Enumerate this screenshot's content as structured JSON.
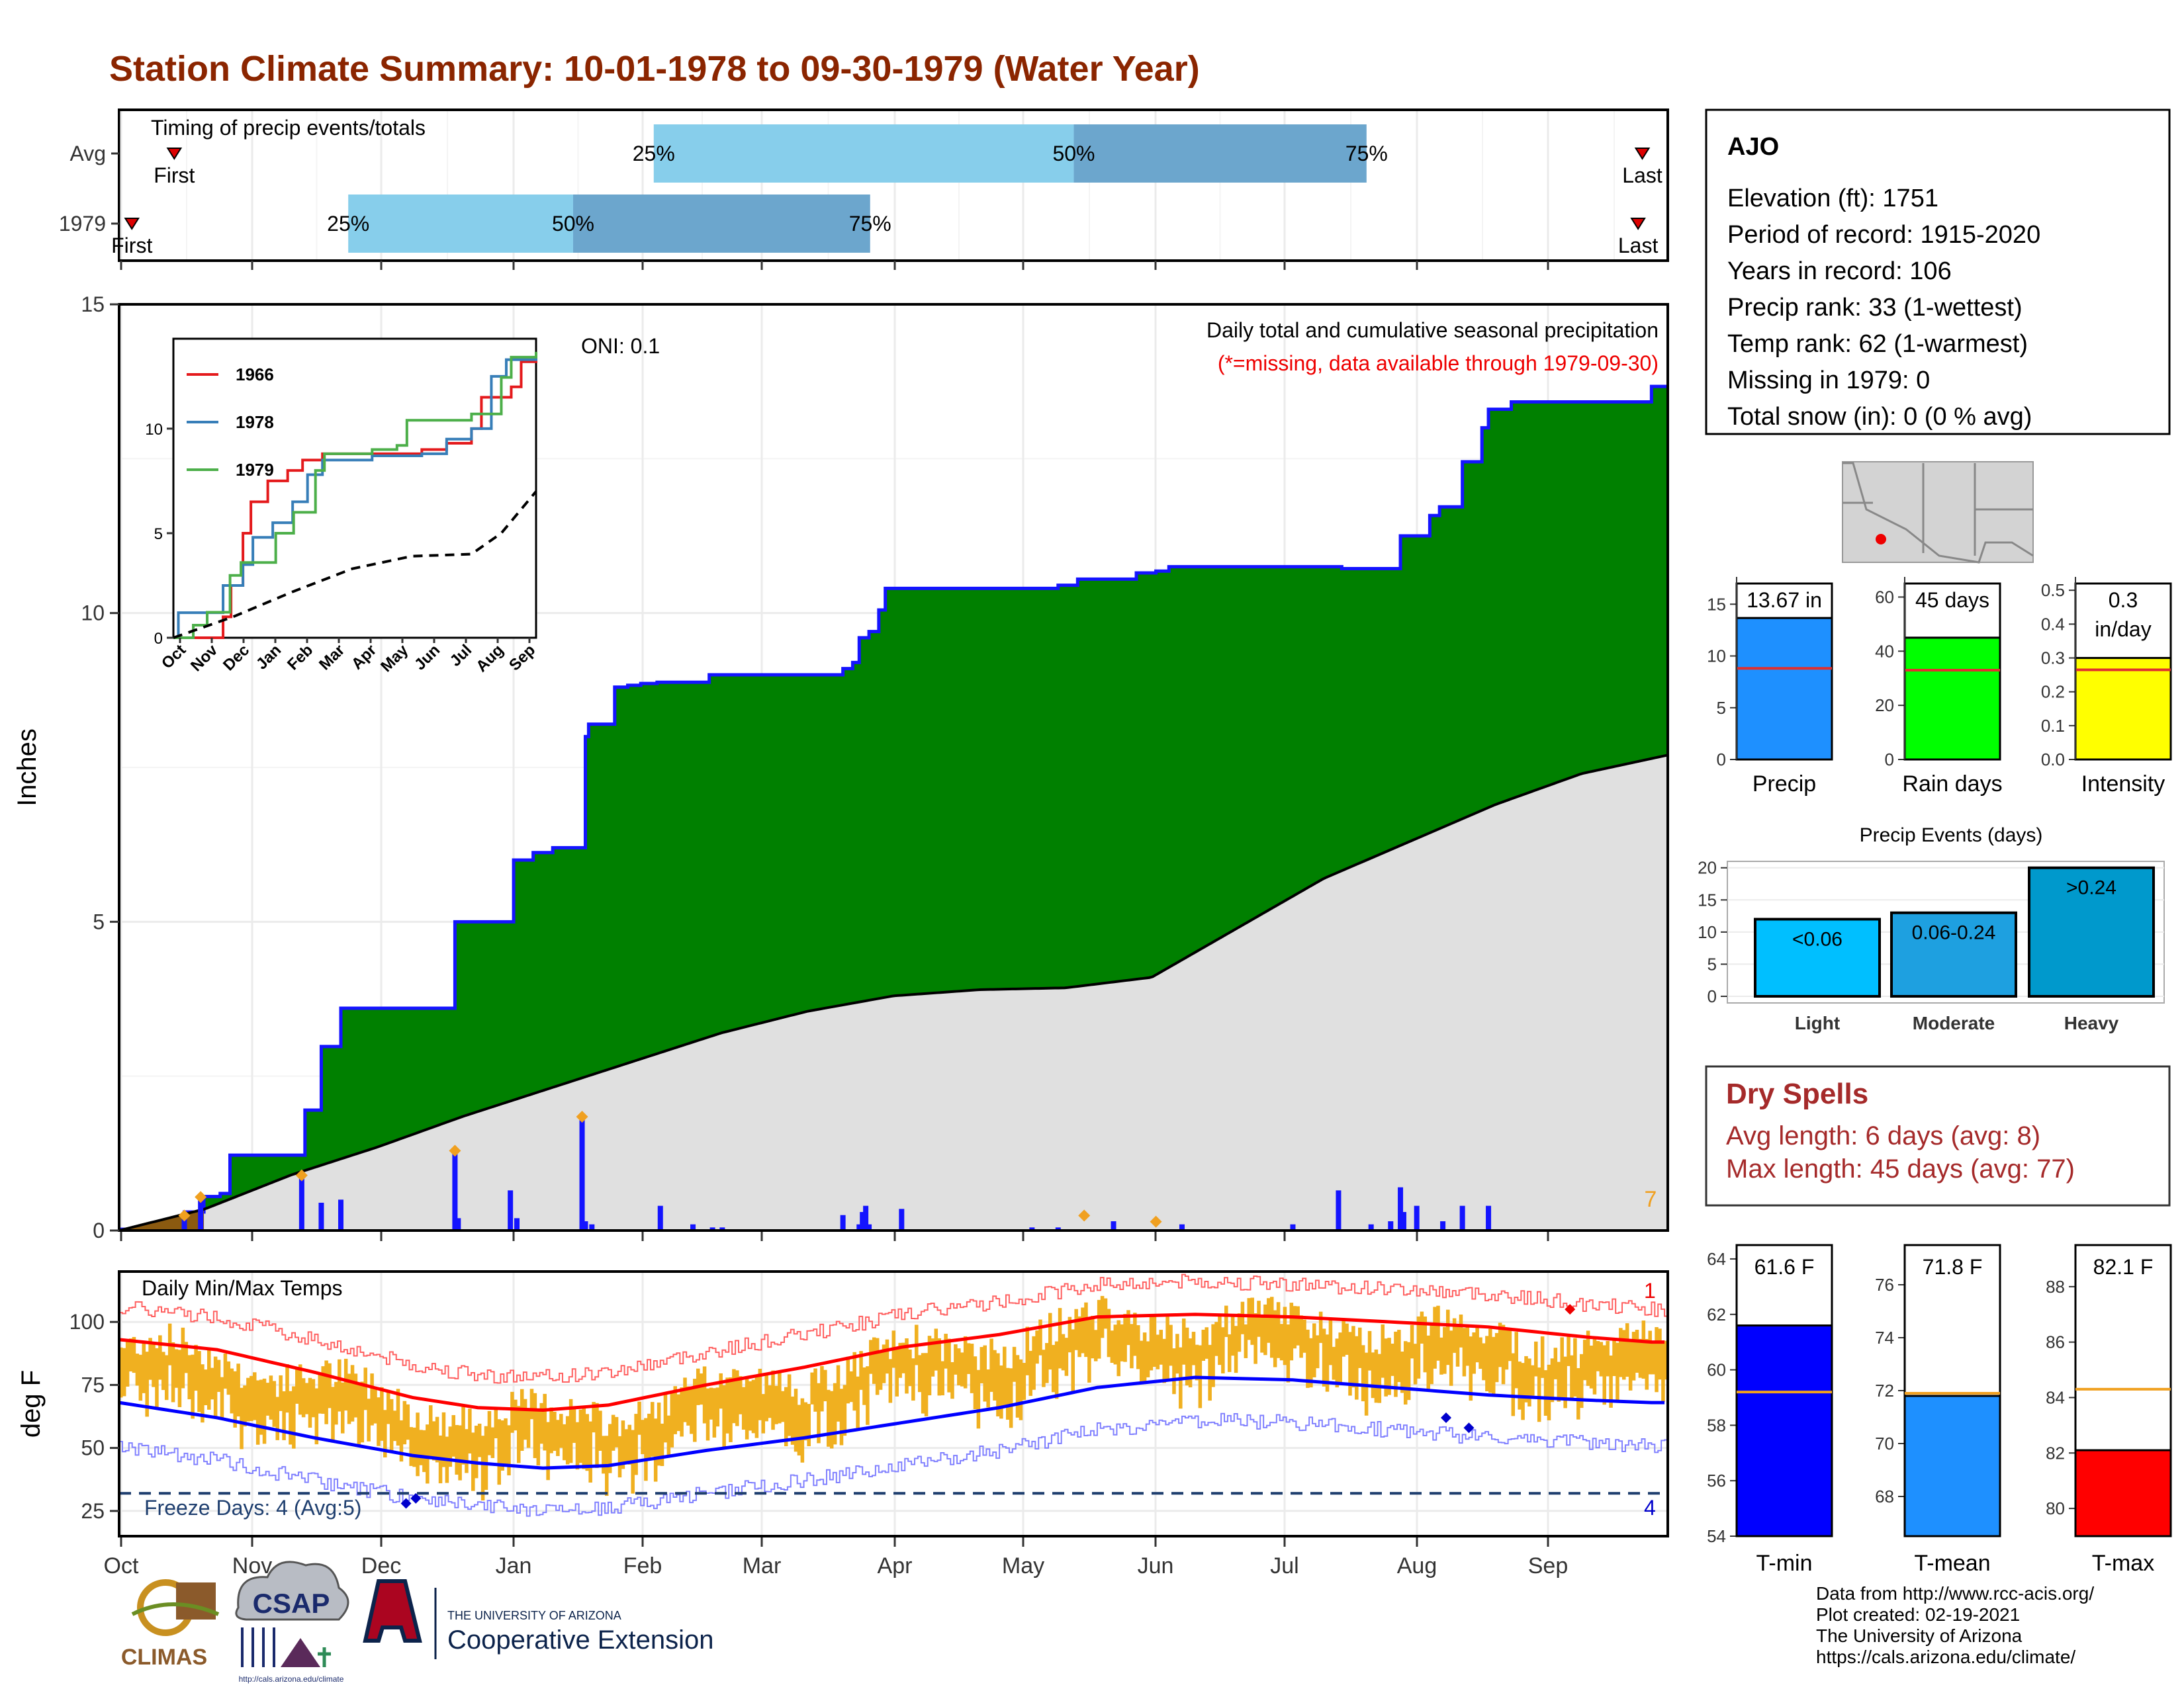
{
  "title": "Station Climate Summary: 10-01-1978 to 09-30-1979 (Water Year)",
  "colors": {
    "title": "#8b2500",
    "precip_green": "#008000",
    "cum_avg_gray": "#e0e0e0",
    "precip_blue": "#1414ff",
    "brown": "#8b5a10",
    "temp_bar": "#f0b020",
    "avg_max_line": "#ff0000",
    "avg_min_line": "#0000ff",
    "light_blue": "#87ceeb",
    "mid_blue": "#6ca6cd",
    "freeze_line": "#1f3f6f",
    "dry_spell_text": "#a52a2a"
  },
  "timing_panel": {
    "title": "Timing of precip events/totals",
    "rows": [
      {
        "label": "Avg",
        "first_label": "First",
        "last_label": "Last",
        "p25": "25%",
        "p50": "50%",
        "p75": "75%",
        "first_day": 13,
        "last_day": 359,
        "d25": 126,
        "d50": 225,
        "d75": 294
      },
      {
        "label": "1979",
        "first_label": "First",
        "last_label": "Last",
        "p25": "25%",
        "p50": "50%",
        "p75": "75%",
        "first_day": 3,
        "last_day": 358,
        "d25": 54,
        "d50": 107,
        "d75": 177
      }
    ]
  },
  "main_panel": {
    "ylabel": "Inches",
    "oni": "ONI: 0.1",
    "note1": "Daily total and cumulative seasonal precipitation",
    "note2": "(*=missing, data available through 1979-09-30)",
    "count_label": "7",
    "yticks": [
      "0",
      "5",
      "10",
      "15"
    ]
  },
  "inset": {
    "legend": [
      "1966",
      "1978",
      "1979"
    ],
    "colors": [
      "#e41a1c",
      "#377eb8",
      "#4daf4a"
    ],
    "yticks": [
      "0",
      "5",
      "10"
    ],
    "months": [
      "Oct",
      "Nov",
      "Dec",
      "Jan",
      "Feb",
      "Mar",
      "Apr",
      "May",
      "Jun",
      "Jul",
      "Aug",
      "Sep"
    ]
  },
  "temp_panel": {
    "ylabel": "deg F",
    "title": "Daily Min/Max Temps",
    "freeze_label": "Freeze Days: 4 (Avg:5)",
    "record_high_count": "1",
    "record_low_count": "4",
    "yticks": [
      "25",
      "50",
      "75",
      "100"
    ]
  },
  "months": [
    "Oct",
    "Nov",
    "Dec",
    "Jan",
    "Feb",
    "Mar",
    "Apr",
    "May",
    "Jun",
    "Jul",
    "Aug",
    "Sep"
  ],
  "station": {
    "name": "AJO",
    "lines": [
      "Elevation (ft): 1751",
      "Period of record: 1915-2020",
      "Years in record: 106",
      "Precip rank: 33 (1-wettest)",
      "Temp rank: 62 (1-warmest)",
      "Missing in 1979: 0",
      "Total snow (in): 0 (0 % avg)"
    ]
  },
  "summary_bars": [
    {
      "label": "Precip",
      "value_text": "13.67 in",
      "value": 13.67,
      "avg": 8.8,
      "max": 17,
      "ticks": [
        "0",
        "5",
        "10",
        "15"
      ],
      "tickvals": [
        0,
        5,
        10,
        15
      ],
      "color": "#1e90ff"
    },
    {
      "label": "Rain days",
      "value_text": "45 days",
      "value": 45,
      "avg": 33,
      "max": 65,
      "ticks": [
        "0",
        "20",
        "40",
        "60"
      ],
      "tickvals": [
        0,
        20,
        40,
        60
      ],
      "color": "#00ff00"
    },
    {
      "label": "Intensity",
      "value_text": "0.3",
      "value_text2": "in/day",
      "value": 0.3,
      "avg": 0.265,
      "max": 0.52,
      "ticks": [
        "0.0",
        "0.1",
        "0.2",
        "0.3",
        "0.4",
        "0.5"
      ],
      "tickvals": [
        0,
        0.1,
        0.2,
        0.3,
        0.4,
        0.5
      ],
      "color": "#ffff00"
    }
  ],
  "events": {
    "title": "Precip Events (days)",
    "ticks": [
      "0",
      "5",
      "10",
      "15",
      "20"
    ],
    "bars": [
      {
        "label": "Light",
        "value_text": "<0.06",
        "value": 12,
        "color": "#00bfff"
      },
      {
        "label": "Moderate",
        "value_text": "0.06-0.24",
        "value": 13,
        "color": "#1ea0e0"
      },
      {
        "label": "Heavy",
        "value_text": ">0.24",
        "value": 20,
        "color": "#0099cc"
      }
    ]
  },
  "dry_spells": {
    "title": "Dry Spells",
    "line1": "Avg length: 6 days (avg: 8)",
    "line2": "Max length: 45 days (avg: 77)"
  },
  "temp_bars": [
    {
      "label": "T-min",
      "value_text": "61.6 F",
      "value": 61.6,
      "avg": 59.2,
      "min": 54,
      "max": 64.5,
      "ticks": [
        "54",
        "56",
        "58",
        "60",
        "62",
        "64"
      ],
      "tickvals": [
        54,
        56,
        58,
        60,
        62,
        64
      ],
      "color": "#0000ff"
    },
    {
      "label": "T-mean",
      "value_text": "71.8 F",
      "value": 71.8,
      "avg": 71.9,
      "min": 66.5,
      "max": 77.5,
      "ticks": [
        "68",
        "70",
        "72",
        "74",
        "76"
      ],
      "tickvals": [
        68,
        70,
        72,
        74,
        76
      ],
      "color": "#1e90ff"
    },
    {
      "label": "T-max",
      "value_text": "82.1 F",
      "value": 82.1,
      "avg": 84.3,
      "min": 79,
      "max": 89.5,
      "ticks": [
        "80",
        "82",
        "84",
        "86",
        "88"
      ],
      "tickvals": [
        80,
        82,
        84,
        86,
        88
      ],
      "color": "#ff0000"
    }
  ],
  "footer": {
    "lines": [
      "Data from http://www.rcc-acis.org/",
      "Plot created: 02-19-2021",
      "The University of Arizona",
      "https://cals.arizona.edu/climate/"
    ],
    "climas": "CLIMAS",
    "csap": "CSAP",
    "csap_url": "http://cals.arizona.edu/climate",
    "ua_small": "THE UNIVERSITY OF ARIZONA",
    "ua_big": "Cooperative Extension"
  },
  "chart_data": [
    {
      "type": "area",
      "title": "Daily total and cumulative seasonal precipitation",
      "ylabel": "Inches",
      "ylim": [
        0,
        15
      ],
      "x_units": "day of water year (0 = Oct 1)",
      "cumulative_observed": {
        "steps": [
          [
            0,
            0.02
          ],
          [
            20,
            0.3
          ],
          [
            26,
            0.55
          ],
          [
            31,
            0.6
          ],
          [
            34,
            1.22
          ],
          [
            57,
            1.22
          ],
          [
            57,
            1.95
          ],
          [
            62,
            2.98
          ],
          [
            68,
            2.98
          ],
          [
            68,
            3.6
          ],
          [
            88,
            3.6
          ],
          [
            88,
            3.6
          ],
          [
            103,
            3.6
          ],
          [
            103,
            5.0
          ],
          [
            121,
            5.0
          ],
          [
            121,
            6.0
          ],
          [
            127,
            6.0
          ],
          [
            127,
            6.12
          ],
          [
            133,
            6.2
          ],
          [
            143,
            6.2
          ],
          [
            143,
            8.0
          ],
          [
            144,
            8.2
          ],
          [
            152,
            8.22
          ],
          [
            152,
            8.8
          ],
          [
            156,
            8.83
          ],
          [
            160,
            8.86
          ],
          [
            165,
            8.88
          ],
          [
            175,
            8.88
          ],
          [
            181,
            8.88
          ],
          [
            181,
            9.0
          ],
          [
            190,
            9.0
          ],
          [
            198,
            9.0
          ],
          [
            198,
            9.0
          ],
          [
            211,
            9.0
          ],
          [
            222,
            9.1
          ],
          [
            225,
            9.2
          ],
          [
            227,
            9.6
          ],
          [
            230,
            9.7
          ],
          [
            233,
            10.05
          ],
          [
            235,
            10.4
          ],
          [
            255,
            10.4
          ],
          [
            280,
            10.4
          ],
          [
            288,
            10.45
          ],
          [
            294,
            10.55
          ],
          [
            312,
            10.65
          ],
          [
            318,
            10.68
          ],
          [
            322,
            10.75
          ],
          [
            348,
            10.75
          ],
          [
            375,
            10.72
          ],
          [
            385,
            10.72
          ],
          [
            393,
            11.25
          ],
          [
            402,
            11.58
          ],
          [
            405,
            11.72
          ],
          [
            412,
            12.45
          ],
          [
            418,
            12.72
          ],
          [
            418,
            13.0
          ],
          [
            420,
            13.3
          ],
          [
            427,
            13.42
          ],
          [
            445,
            13.42
          ],
          [
            470,
            13.67
          ]
        ]
      },
      "cumulative_average": [
        [
          0,
          0
        ],
        [
          30,
          0.35
        ],
        [
          60,
          0.9
        ],
        [
          90,
          1.35
        ],
        [
          120,
          1.85
        ],
        [
          150,
          2.3
        ],
        [
          180,
          2.75
        ],
        [
          210,
          3.2
        ],
        [
          240,
          3.55
        ],
        [
          270,
          3.8
        ],
        [
          300,
          3.9
        ],
        [
          330,
          3.93
        ],
        [
          360,
          4.1
        ],
        [
          390,
          4.9
        ],
        [
          420,
          5.7
        ],
        [
          450,
          6.3
        ],
        [
          480,
          6.9
        ],
        [
          510,
          7.4
        ],
        [
          540,
          7.7
        ]
      ],
      "daily_precip": [
        [
          20,
          0.2
        ],
        [
          25,
          0.5
        ],
        [
          56,
          0.85
        ],
        [
          62,
          0.45
        ],
        [
          68,
          0.5
        ],
        [
          103,
          1.25
        ],
        [
          104,
          0.2
        ],
        [
          120,
          0.65
        ],
        [
          122,
          0.2
        ],
        [
          142,
          1.8
        ],
        [
          143,
          0.15
        ],
        [
          145,
          0.1
        ],
        [
          166,
          0.4
        ],
        [
          176,
          0.1
        ],
        [
          182,
          0.05
        ],
        [
          185,
          0.05
        ],
        [
          222,
          0.25
        ],
        [
          227,
          0.1
        ],
        [
          228,
          0.3
        ],
        [
          229,
          0.4
        ],
        [
          230,
          0.1
        ],
        [
          240,
          0.35
        ],
        [
          280,
          0.05
        ],
        [
          288,
          0.05
        ],
        [
          305,
          0.15
        ],
        [
          326,
          0.1
        ],
        [
          360,
          0.1
        ],
        [
          374,
          0.65
        ],
        [
          384,
          0.1
        ],
        [
          390,
          0.15
        ],
        [
          393,
          0.7
        ],
        [
          394,
          0.3
        ],
        [
          398,
          0.4
        ],
        [
          406,
          0.15
        ],
        [
          412,
          0.4
        ],
        [
          420,
          0.4
        ]
      ]
    },
    {
      "type": "line",
      "title": "",
      "legend": [
        "1966",
        "1978",
        "1979"
      ],
      "ylim": [
        0,
        15
      ],
      "series": [
        {
          "name": "1966",
          "points": [
            [
              0,
              0
            ],
            [
              45,
              0
            ],
            [
              50,
              1
            ],
            [
              58,
              2.5
            ],
            [
              70,
              5.0
            ],
            [
              78,
              6.5
            ],
            [
              95,
              7.5
            ],
            [
              115,
              8.0
            ],
            [
              130,
              8.5
            ],
            [
              150,
              8.8
            ],
            [
              200,
              8.8
            ],
            [
              250,
              9.0
            ],
            [
              275,
              9.3
            ],
            [
              300,
              10.0
            ],
            [
              310,
              11.5
            ],
            [
              340,
              12.0
            ],
            [
              350,
              13.2
            ],
            [
              365,
              13.5
            ]
          ]
        },
        {
          "name": "1978",
          "points": [
            [
              0,
              0
            ],
            [
              5,
              1.2
            ],
            [
              35,
              1.2
            ],
            [
              50,
              2.5
            ],
            [
              70,
              3.5
            ],
            [
              80,
              4.8
            ],
            [
              100,
              5.5
            ],
            [
              120,
              6.5
            ],
            [
              135,
              7.8
            ],
            [
              150,
              8.5
            ],
            [
              200,
              8.7
            ],
            [
              250,
              8.8
            ],
            [
              275,
              9.5
            ],
            [
              300,
              10.0
            ],
            [
              320,
              12.5
            ],
            [
              335,
              13.3
            ],
            [
              365,
              13.6
            ]
          ]
        },
        {
          "name": "1979",
          "points": [
            [
              0,
              0
            ],
            [
              20,
              0.6
            ],
            [
              34,
              1.22
            ],
            [
              57,
              2.98
            ],
            [
              68,
              3.6
            ],
            [
              88,
              3.6
            ],
            [
              103,
              5.0
            ],
            [
              121,
              6.0
            ],
            [
              143,
              8.0
            ],
            [
              152,
              8.8
            ],
            [
              200,
              9.0
            ],
            [
              225,
              9.2
            ],
            [
              235,
              10.4
            ],
            [
              300,
              10.7
            ],
            [
              330,
              12.45
            ],
            [
              340,
              13.42
            ],
            [
              365,
              13.67
            ]
          ]
        },
        {
          "name": "avg",
          "points": [
            [
              0,
              0
            ],
            [
              60,
              1.0
            ],
            [
              120,
              2.2
            ],
            [
              180,
              3.3
            ],
            [
              240,
              3.9
            ],
            [
              300,
              4.0
            ],
            [
              330,
              5.0
            ],
            [
              365,
              7.0
            ]
          ]
        }
      ]
    },
    {
      "type": "bar",
      "title": "Daily Min/Max Temps",
      "ylabel": "deg F",
      "ylim": [
        15,
        120
      ],
      "avg_max": [
        [
          0,
          93
        ],
        [
          30,
          89
        ],
        [
          60,
          80
        ],
        [
          90,
          70
        ],
        [
          110,
          66
        ],
        [
          130,
          65
        ],
        [
          150,
          67
        ],
        [
          180,
          75
        ],
        [
          210,
          82
        ],
        [
          240,
          90
        ],
        [
          270,
          95
        ],
        [
          300,
          102
        ],
        [
          330,
          103
        ],
        [
          360,
          102
        ],
        [
          390,
          100
        ],
        [
          420,
          98
        ],
        [
          450,
          94
        ],
        [
          470,
          92
        ]
      ],
      "avg_min": [
        [
          0,
          68
        ],
        [
          30,
          62
        ],
        [
          60,
          54
        ],
        [
          90,
          47
        ],
        [
          110,
          44
        ],
        [
          130,
          42
        ],
        [
          150,
          43
        ],
        [
          180,
          49
        ],
        [
          210,
          54
        ],
        [
          240,
          60
        ],
        [
          270,
          66
        ],
        [
          300,
          74
        ],
        [
          330,
          78
        ],
        [
          360,
          77
        ],
        [
          390,
          74
        ],
        [
          420,
          71
        ],
        [
          450,
          69
        ],
        [
          470,
          68
        ]
      ],
      "freeze_threshold": 32
    }
  ]
}
